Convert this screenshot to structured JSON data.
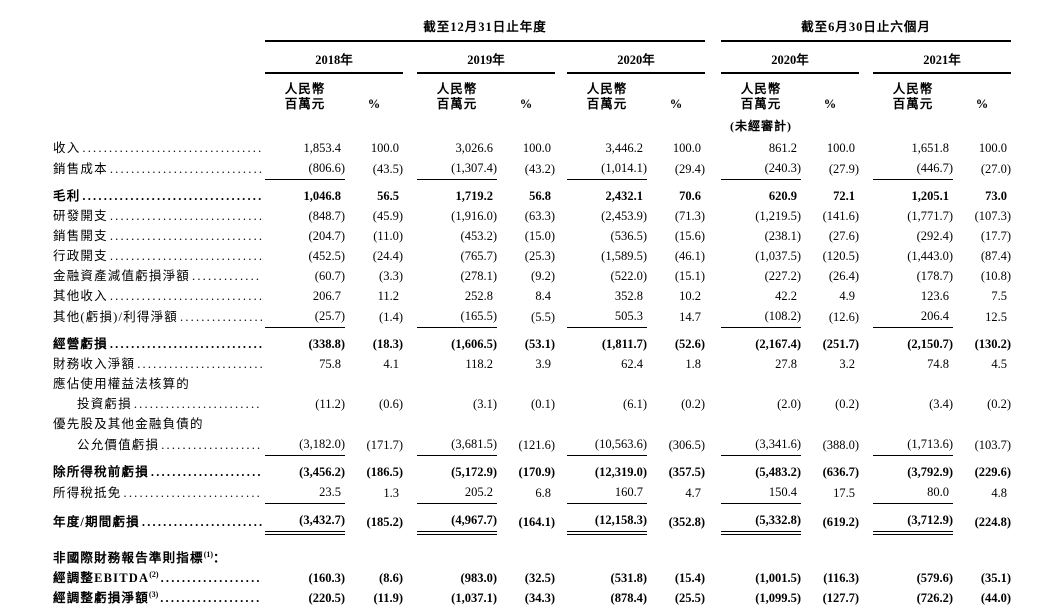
{
  "table": {
    "groups": [
      {
        "label": "截至12月31日止年度"
      },
      {
        "label": "截至6月30日止六個月"
      }
    ],
    "columns": [
      {
        "year": "2018年"
      },
      {
        "year": "2019年"
      },
      {
        "year": "2020年"
      },
      {
        "year": "2020年",
        "note": "(未經審計)"
      },
      {
        "year": "2021年"
      }
    ],
    "unit_headers": {
      "currency_line1": "人民幣",
      "currency_line2": "百萬元",
      "percent": "%"
    },
    "rows": [
      {
        "label": "收入",
        "leaders": true,
        "bold": false,
        "indent": 0,
        "gap": 0,
        "rule": "none",
        "values": [
          "1,853.4",
          "100.0",
          "3,026.6",
          "100.0",
          "3,446.2",
          "100.0",
          "861.2",
          "100.0",
          "1,651.8",
          "100.0"
        ]
      },
      {
        "label": "銷售成本",
        "leaders": true,
        "bold": false,
        "indent": 0,
        "gap": 0,
        "rule": "single",
        "values": [
          "(806.6)",
          "(43.5)",
          "(1,307.4)",
          "(43.2)",
          "(1,014.1)",
          "(29.4)",
          "(240.3)",
          "(27.9)",
          "(446.7)",
          "(27.0)"
        ]
      },
      {
        "label": "毛利",
        "leaders": true,
        "bold": true,
        "indent": 0,
        "gap": 1,
        "rule": "none",
        "values": [
          "1,046.8",
          "56.5",
          "1,719.2",
          "56.8",
          "2,432.1",
          "70.6",
          "620.9",
          "72.1",
          "1,205.1",
          "73.0"
        ]
      },
      {
        "label": "研發開支",
        "leaders": true,
        "bold": false,
        "indent": 0,
        "gap": 0,
        "rule": "none",
        "values": [
          "(848.7)",
          "(45.9)",
          "(1,916.0)",
          "(63.3)",
          "(2,453.9)",
          "(71.3)",
          "(1,219.5)",
          "(141.6)",
          "(1,771.7)",
          "(107.3)"
        ]
      },
      {
        "label": "銷售開支",
        "leaders": true,
        "bold": false,
        "indent": 0,
        "gap": 0,
        "rule": "none",
        "values": [
          "(204.7)",
          "(11.0)",
          "(453.2)",
          "(15.0)",
          "(536.5)",
          "(15.6)",
          "(238.1)",
          "(27.6)",
          "(292.4)",
          "(17.7)"
        ]
      },
      {
        "label": "行政開支",
        "leaders": true,
        "bold": false,
        "indent": 0,
        "gap": 0,
        "rule": "none",
        "values": [
          "(452.5)",
          "(24.4)",
          "(765.7)",
          "(25.3)",
          "(1,589.5)",
          "(46.1)",
          "(1,037.5)",
          "(120.5)",
          "(1,443.0)",
          "(87.4)"
        ]
      },
      {
        "label": "金融資產減值虧損淨額",
        "leaders": true,
        "bold": false,
        "indent": 0,
        "gap": 0,
        "rule": "none",
        "values": [
          "(60.7)",
          "(3.3)",
          "(278.1)",
          "(9.2)",
          "(522.0)",
          "(15.1)",
          "(227.2)",
          "(26.4)",
          "(178.7)",
          "(10.8)"
        ]
      },
      {
        "label": "其他收入",
        "leaders": true,
        "bold": false,
        "indent": 0,
        "gap": 0,
        "rule": "none",
        "values": [
          "206.7",
          "11.2",
          "252.8",
          "8.4",
          "352.8",
          "10.2",
          "42.2",
          "4.9",
          "123.6",
          "7.5"
        ]
      },
      {
        "label": "其他(虧損)/利得淨額",
        "leaders": true,
        "bold": false,
        "indent": 0,
        "gap": 0,
        "rule": "single",
        "values": [
          "(25.7)",
          "(1.4)",
          "(165.5)",
          "(5.5)",
          "505.3",
          "14.7",
          "(108.2)",
          "(12.6)",
          "206.4",
          "12.5"
        ]
      },
      {
        "label": "經營虧損",
        "leaders": true,
        "bold": true,
        "indent": 0,
        "gap": 1,
        "rule": "none",
        "values": [
          "(338.8)",
          "(18.3)",
          "(1,606.5)",
          "(53.1)",
          "(1,811.7)",
          "(52.6)",
          "(2,167.4)",
          "(251.7)",
          "(2,150.7)",
          "(130.2)"
        ]
      },
      {
        "label": "財務收入淨額",
        "leaders": true,
        "bold": false,
        "indent": 0,
        "gap": 0,
        "rule": "none",
        "values": [
          "75.8",
          "4.1",
          "118.2",
          "3.9",
          "62.4",
          "1.8",
          "27.8",
          "3.2",
          "74.8",
          "4.5"
        ]
      },
      {
        "label": "應佔使用權益法核算的",
        "leaders": false,
        "bold": false,
        "indent": 0,
        "gap": 0,
        "rule": "none",
        "values": []
      },
      {
        "label": "投資虧損",
        "leaders": true,
        "bold": false,
        "indent": 1,
        "gap": 0,
        "rule": "none",
        "values": [
          "(11.2)",
          "(0.6)",
          "(3.1)",
          "(0.1)",
          "(6.1)",
          "(0.2)",
          "(2.0)",
          "(0.2)",
          "(3.4)",
          "(0.2)"
        ]
      },
      {
        "label": "優先股及其他金融負債的",
        "leaders": false,
        "bold": false,
        "indent": 0,
        "gap": 0,
        "rule": "none",
        "values": []
      },
      {
        "label": "公允價值虧損",
        "leaders": true,
        "bold": false,
        "indent": 1,
        "gap": 0,
        "rule": "single",
        "values": [
          "(3,182.0)",
          "(171.7)",
          "(3,681.5)",
          "(121.6)",
          "(10,563.6)",
          "(306.5)",
          "(3,341.6)",
          "(388.0)",
          "(1,713.6)",
          "(103.7)"
        ]
      },
      {
        "label": "除所得稅前虧損",
        "leaders": true,
        "bold": true,
        "indent": 0,
        "gap": 1,
        "rule": "none",
        "values": [
          "(3,456.2)",
          "(186.5)",
          "(5,172.9)",
          "(170.9)",
          "(12,319.0)",
          "(357.5)",
          "(5,483.2)",
          "(636.7)",
          "(3,792.9)",
          "(229.6)"
        ]
      },
      {
        "label": "所得稅抵免",
        "leaders": true,
        "bold": false,
        "indent": 0,
        "gap": 0,
        "rule": "single",
        "values": [
          "23.5",
          "1.3",
          "205.2",
          "6.8",
          "160.7",
          "4.7",
          "150.4",
          "17.5",
          "80.0",
          "4.8"
        ]
      },
      {
        "label": "年度/期間虧損",
        "leaders": true,
        "bold": true,
        "indent": 0,
        "gap": 1,
        "rule": "double",
        "values": [
          "(3,432.7)",
          "(185.2)",
          "(4,967.7)",
          "(164.1)",
          "(12,158.3)",
          "(352.8)",
          "(5,332.8)",
          "(619.2)",
          "(3,712.9)",
          "(224.8)"
        ]
      },
      {
        "label": "非國際財務報告準則指標",
        "sup": "(1)",
        "suffix": "：",
        "leaders": false,
        "bold": true,
        "indent": 0,
        "gap": 2,
        "rule": "none",
        "values": []
      },
      {
        "label": "經調整EBITDA",
        "sup": "(2)",
        "leaders": true,
        "bold": true,
        "indent": 0,
        "gap": 0,
        "rule": "none",
        "values": [
          "(160.3)",
          "(8.6)",
          "(983.0)",
          "(32.5)",
          "(531.8)",
          "(15.4)",
          "(1,001.5)",
          "(116.3)",
          "(579.6)",
          "(35.1)"
        ]
      },
      {
        "label": "經調整虧損淨額",
        "sup": "(3)",
        "leaders": true,
        "bold": true,
        "indent": 0,
        "gap": 0,
        "rule": "none",
        "values": [
          "(220.5)",
          "(11.9)",
          "(1,037.1)",
          "(34.3)",
          "(878.4)",
          "(25.5)",
          "(1,099.5)",
          "(127.7)",
          "(726.2)",
          "(44.0)"
        ]
      }
    ]
  }
}
